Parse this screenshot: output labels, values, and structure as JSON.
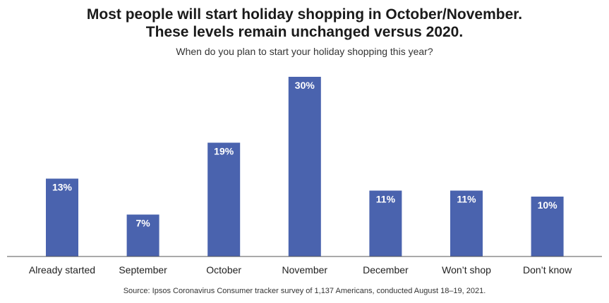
{
  "chart_data": {
    "type": "bar",
    "title_line1": "Most people will start holiday shopping in October/November.",
    "title_line2": "These levels remain unchanged versus 2020.",
    "subtitle": "When do you plan to start your holiday shopping this year?",
    "categories": [
      "Already started",
      "September",
      "October",
      "November",
      "December",
      "Won’t shop",
      "Don’t know"
    ],
    "values": [
      13,
      7,
      19,
      30,
      11,
      11,
      10
    ],
    "value_labels": [
      "13%",
      "7%",
      "19%",
      "30%",
      "11%",
      "11%",
      "10%"
    ],
    "ylim": [
      0,
      30
    ],
    "grid": false,
    "legend": "none",
    "bar_color": "#4a63ae",
    "source": "Source: Ipsos Coronavirus Consumer tracker survey of 1,137 Americans, conducted August 18–19, 2021."
  }
}
